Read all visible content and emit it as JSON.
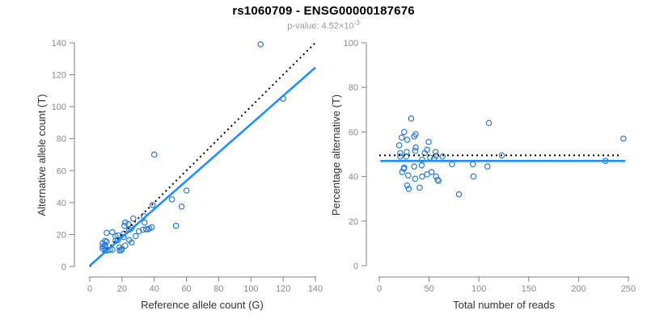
{
  "header": {
    "title": "rs1060709 - ENSG00000187676",
    "subtitle_prefix": "p-value: 4.52×10",
    "subtitle_exponent": "-3"
  },
  "colors": {
    "point": "#2B7CD4",
    "fit_line": "#1E90FF",
    "dotted_line": "#000000",
    "axis_line": "#808080",
    "tick_label": "#8A8A8A",
    "axis_title": "#333333",
    "title": "#000000",
    "subtitle": "#999999"
  },
  "chart_data": [
    {
      "type": "scatter",
      "name": "allele-counts-scatter",
      "xlabel": "Reference allele count (G)",
      "ylabel": "Alternative allele count (T)",
      "xlim": [
        0,
        140
      ],
      "ylim": [
        0,
        140
      ],
      "xticks": [
        0,
        20,
        40,
        60,
        80,
        100,
        120,
        140
      ],
      "yticks": [
        0,
        20,
        40,
        60,
        80,
        100,
        120,
        140
      ],
      "grid": false,
      "points": [
        [
          8,
          14.5
        ],
        [
          8,
          12.5
        ],
        [
          8,
          11
        ],
        [
          9.5,
          16
        ],
        [
          9.5,
          13.5
        ],
        [
          9.5,
          12
        ],
        [
          9.5,
          10
        ],
        [
          10.5,
          21
        ],
        [
          10.5,
          15.5
        ],
        [
          11,
          10
        ],
        [
          12.5,
          10.5
        ],
        [
          14,
          21.5
        ],
        [
          14,
          10.5
        ],
        [
          16,
          16
        ],
        [
          16,
          19
        ],
        [
          17.5,
          19.5
        ],
        [
          17.5,
          16.5
        ],
        [
          18.5,
          12
        ],
        [
          18.5,
          10
        ],
        [
          19.5,
          10.2
        ],
        [
          20,
          11
        ],
        [
          21,
          18.5
        ],
        [
          21,
          20.5
        ],
        [
          22,
          13
        ],
        [
          21.5,
          25.5
        ],
        [
          22,
          27.5
        ],
        [
          24,
          26.5
        ],
        [
          24.5,
          23
        ],
        [
          24.5,
          16.5
        ],
        [
          26,
          24
        ],
        [
          26,
          15
        ],
        [
          27,
          30
        ],
        [
          28.5,
          19
        ],
        [
          30.5,
          22
        ],
        [
          33,
          23
        ],
        [
          33.5,
          31.5
        ],
        [
          34,
          27.5
        ],
        [
          35,
          23.3
        ],
        [
          36,
          23.3
        ],
        [
          37,
          23.8
        ],
        [
          38.5,
          24.5
        ],
        [
          39,
          38.5
        ],
        [
          40,
          70
        ],
        [
          51,
          42
        ],
        [
          53.5,
          25.5
        ],
        [
          57,
          37.5
        ],
        [
          60,
          47.5
        ],
        [
          106,
          139
        ],
        [
          120,
          105
        ]
      ],
      "lines": [
        {
          "name": "identity-line",
          "style": "dotted",
          "color_key": "dotted_line",
          "x1": 0,
          "y1": 0,
          "x2": 140,
          "y2": 140
        },
        {
          "name": "regression-line",
          "style": "solid",
          "color_key": "fit_line",
          "x1": 0,
          "y1": 0.5,
          "x2": 140,
          "y2": 124.5
        }
      ]
    },
    {
      "type": "scatter",
      "name": "percentage-vs-reads-scatter",
      "xlabel": "Total number of reads",
      "ylabel": "Percentage alternative (T)",
      "xlim": [
        0,
        250
      ],
      "ylim": [
        0,
        100
      ],
      "xticks": [
        0,
        50,
        100,
        150,
        200,
        250
      ],
      "yticks": [
        0,
        20,
        40,
        60,
        80,
        100
      ],
      "grid": false,
      "points": [
        [
          20,
          54
        ],
        [
          21,
          50.5
        ],
        [
          21,
          49
        ],
        [
          22.5,
          57.5
        ],
        [
          23,
          42
        ],
        [
          24.5,
          43.5
        ],
        [
          25,
          60
        ],
        [
          25,
          44
        ],
        [
          27,
          49
        ],
        [
          27.5,
          51
        ],
        [
          28,
          56.5
        ],
        [
          28,
          36
        ],
        [
          29,
          40.5
        ],
        [
          29.5,
          34.5
        ],
        [
          32,
          66
        ],
        [
          35,
          58
        ],
        [
          35,
          44.5
        ],
        [
          36,
          51.5
        ],
        [
          36,
          39
        ],
        [
          36.5,
          59
        ],
        [
          36.5,
          53
        ],
        [
          40.5,
          35
        ],
        [
          42.5,
          45
        ],
        [
          43,
          47.5
        ],
        [
          43,
          40
        ],
        [
          45.5,
          50.5
        ],
        [
          48,
          52
        ],
        [
          48,
          41
        ],
        [
          49.5,
          55.5
        ],
        [
          51,
          48.5
        ],
        [
          52.5,
          42
        ],
        [
          55,
          48
        ],
        [
          56.5,
          51
        ],
        [
          57,
          49.3
        ],
        [
          57,
          40
        ],
        [
          58.5,
          38.5
        ],
        [
          59.5,
          38
        ],
        [
          63.5,
          49
        ],
        [
          73,
          45.5
        ],
        [
          80,
          32
        ],
        [
          94,
          45.5
        ],
        [
          94.5,
          40
        ],
        [
          108.5,
          44.5
        ],
        [
          110,
          64
        ],
        [
          123,
          49.5
        ],
        [
          227,
          47
        ],
        [
          245,
          57
        ]
      ],
      "lines": [
        {
          "name": "expected-50pct-line",
          "style": "dotted",
          "color_key": "dotted_line",
          "x1": 0,
          "y1": 49.5,
          "x2": 242,
          "y2": 49.5
        },
        {
          "name": "mean-percentage-line",
          "style": "solid",
          "color_key": "fit_line",
          "x1": 1,
          "y1": 47,
          "x2": 247,
          "y2": 47
        }
      ]
    }
  ]
}
